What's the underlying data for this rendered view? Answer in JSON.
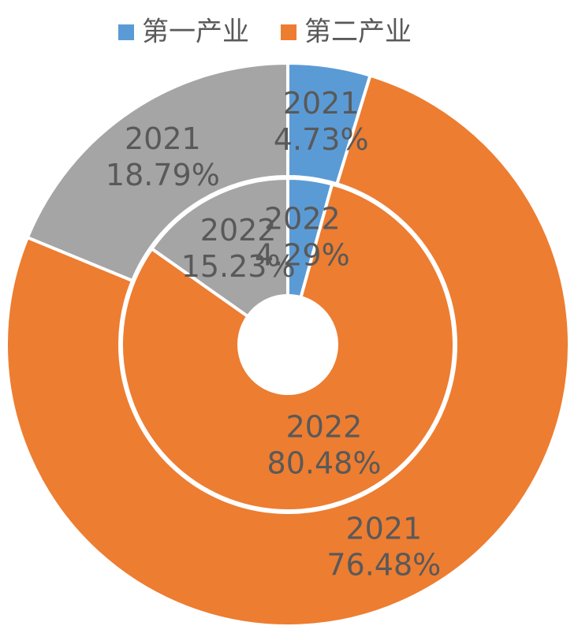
{
  "chart_data": {
    "type": "donut",
    "categories": [
      "第一产业",
      "第二产业",
      null
    ],
    "colors": [
      "#5b9bd5",
      "#ed7d31",
      "#a5a5a5"
    ],
    "series": [
      {
        "name": "2021",
        "values": [
          4.73,
          76.48,
          18.79
        ],
        "value_labels": [
          "4.73%",
          "76.48%",
          "18.79%"
        ]
      },
      {
        "name": "2022",
        "values": [
          4.29,
          80.48,
          15.23
        ],
        "value_labels": [
          "4.29%",
          "80.48%",
          "15.23%"
        ]
      }
    ],
    "legend": "top"
  }
}
